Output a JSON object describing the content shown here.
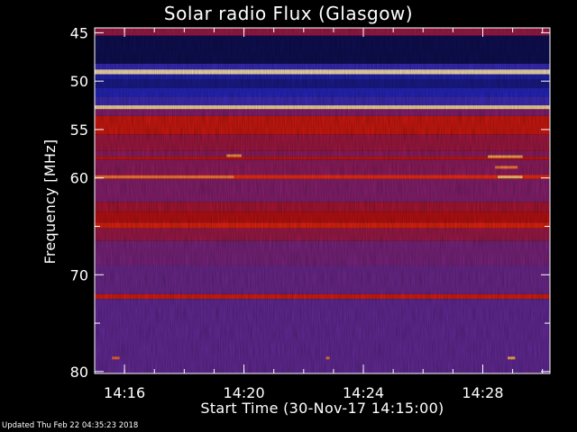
{
  "title": "Solar radio Flux (Glasgow)",
  "updated": "Updated Thu Feb 22 04:35:23 2018",
  "chart_data": {
    "type": "heatmap",
    "title": "Solar radio Flux (Glasgow)",
    "xlabel": "Start Time (30-Nov-17 14:15:00)",
    "ylabel": "Frequency [MHz]",
    "x_unit": "time (HH:MM, 30-Nov-17)",
    "y_unit": "MHz",
    "xlim": [
      "14:15:00",
      "14:30:15"
    ],
    "ylim": [
      44.5,
      80.2
    ],
    "y_inverted": true,
    "xticks": [
      {
        "value": "14:16",
        "label": "14:16"
      },
      {
        "value": "14:20",
        "label": "14:20"
      },
      {
        "value": "14:24",
        "label": "14:24"
      },
      {
        "value": "14:28",
        "label": "14:28"
      }
    ],
    "yticks": [
      {
        "value": 45,
        "label": "45"
      },
      {
        "value": 50,
        "label": "50"
      },
      {
        "value": 55,
        "label": "55"
      },
      {
        "value": 60,
        "label": "60"
      },
      {
        "value": 65,
        "label": ""
      },
      {
        "value": 70,
        "label": "70"
      },
      {
        "value": 75,
        "label": ""
      },
      {
        "value": 80,
        "label": "80"
      }
    ],
    "colormap": [
      "#0a0a2a",
      "#101060",
      "#2828c8",
      "#5030b0",
      "#8a2070",
      "#c01010",
      "#ff3010",
      "#ffc060",
      "#fff0d0"
    ],
    "bands": [
      {
        "from": 44.5,
        "to": 45.3,
        "level": 0.55
      },
      {
        "from": 45.3,
        "to": 48.2,
        "level": 0.1
      },
      {
        "from": 48.2,
        "to": 48.8,
        "level": 0.3
      },
      {
        "from": 48.8,
        "to": 49.3,
        "level": 0.98
      },
      {
        "from": 49.3,
        "to": 49.8,
        "level": 0.22
      },
      {
        "from": 49.8,
        "to": 50.7,
        "level": 0.18
      },
      {
        "from": 50.7,
        "to": 51.6,
        "level": 0.24
      },
      {
        "from": 51.6,
        "to": 52.5,
        "level": 0.32
      },
      {
        "from": 52.5,
        "to": 52.9,
        "level": 0.95
      },
      {
        "from": 52.9,
        "to": 53.6,
        "level": 0.5
      },
      {
        "from": 53.6,
        "to": 55.5,
        "level": 0.66
      },
      {
        "from": 55.5,
        "to": 57.2,
        "level": 0.56
      },
      {
        "from": 57.2,
        "to": 57.8,
        "level": 0.52
      },
      {
        "from": 57.8,
        "to": 58.1,
        "level": 0.65
      },
      {
        "from": 58.1,
        "to": 59.7,
        "level": 0.52
      },
      {
        "from": 59.7,
        "to": 60.1,
        "level": 0.74
      },
      {
        "from": 60.1,
        "to": 62.5,
        "level": 0.5
      },
      {
        "from": 62.5,
        "to": 63.5,
        "level": 0.58
      },
      {
        "from": 63.5,
        "to": 64.6,
        "level": 0.62
      },
      {
        "from": 64.6,
        "to": 65.2,
        "level": 0.7
      },
      {
        "from": 65.2,
        "to": 66.5,
        "level": 0.55
      },
      {
        "from": 66.5,
        "to": 69.0,
        "level": 0.47
      },
      {
        "from": 69.0,
        "to": 72.0,
        "level": 0.44
      },
      {
        "from": 72.0,
        "to": 72.5,
        "level": 0.68
      },
      {
        "from": 72.5,
        "to": 80.2,
        "level": 0.42
      }
    ],
    "hot_spots": [
      {
        "time": "14:15:00",
        "time_end": "14:19:40",
        "freq": 59.9,
        "level": 0.82
      },
      {
        "time": "14:19:25",
        "time_end": "14:19:55",
        "freq": 57.7,
        "level": 0.84
      },
      {
        "time": "14:28:10",
        "time_end": "14:29:20",
        "freq": 57.8,
        "level": 0.86
      },
      {
        "time": "14:28:25",
        "time_end": "14:29:10",
        "freq": 58.9,
        "level": 0.82
      },
      {
        "time": "14:28:30",
        "time_end": "14:29:20",
        "freq": 59.9,
        "level": 0.9
      },
      {
        "time": "14:28:50",
        "time_end": "14:29:05",
        "freq": 78.6,
        "level": 0.86
      },
      {
        "time": "14:15:35",
        "time_end": "14:15:50",
        "freq": 78.6,
        "level": 0.8
      },
      {
        "time": "14:22:45",
        "time_end": "14:22:52",
        "freq": 78.6,
        "level": 0.82
      }
    ]
  }
}
